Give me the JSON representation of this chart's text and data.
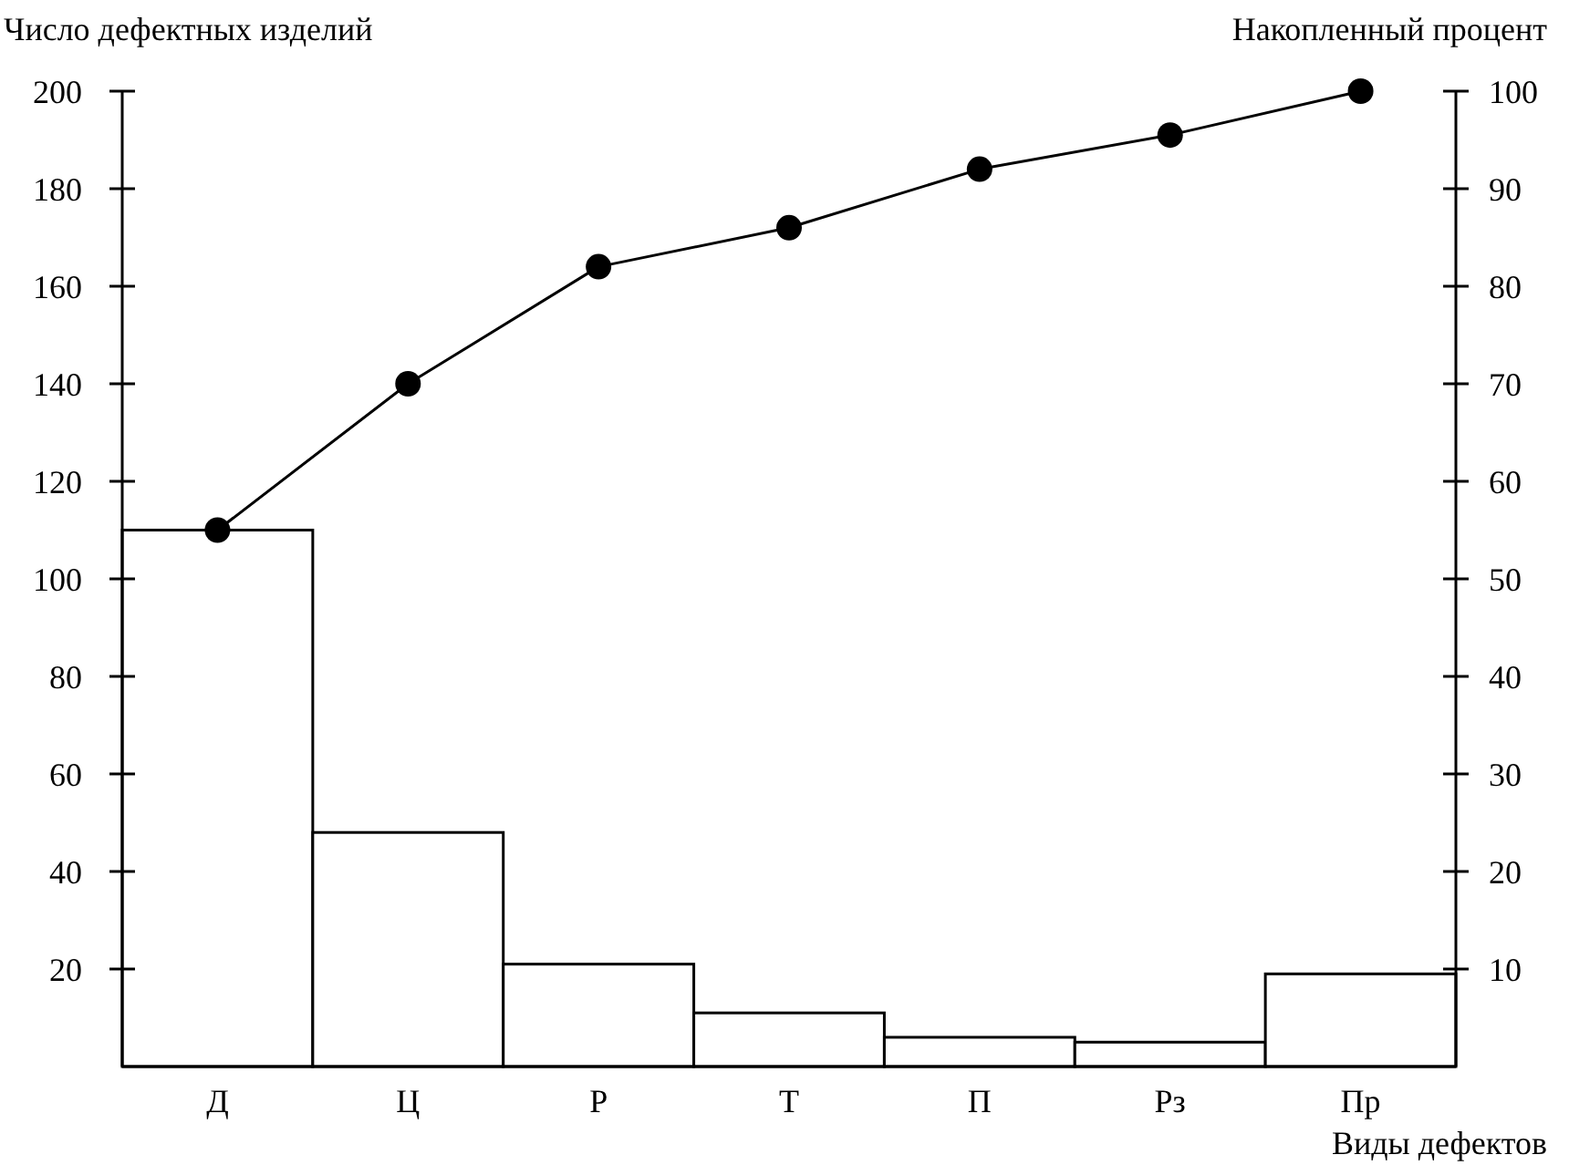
{
  "chart_data": {
    "type": "bar",
    "xlabel": "Виды дефектов",
    "ylabel": "Число дефектных изделий",
    "y2label": "Накопленный процент",
    "categories": [
      "Д",
      "Ц",
      "Р",
      "Т",
      "П",
      "Рз",
      "Пр"
    ],
    "series": [
      {
        "color": "#ffffff",
        "values": [
          110,
          48,
          21,
          11,
          6,
          5,
          19
        ]
      },
      {
        "type": "line",
        "axis": "y2",
        "color": "#000000",
        "marker": "circle",
        "line_style": "solid",
        "values": [
          55,
          70,
          82,
          86,
          92,
          95.5,
          100
        ]
      }
    ],
    "ylim": [
      0,
      200
    ],
    "yticks": [
      20,
      40,
      60,
      80,
      100,
      120,
      140,
      160,
      180,
      200
    ],
    "y2lim": [
      0,
      100
    ],
    "y2ticks": [
      10,
      20,
      30,
      40,
      50,
      60,
      70,
      80,
      90,
      100
    ],
    "grid": false
  }
}
